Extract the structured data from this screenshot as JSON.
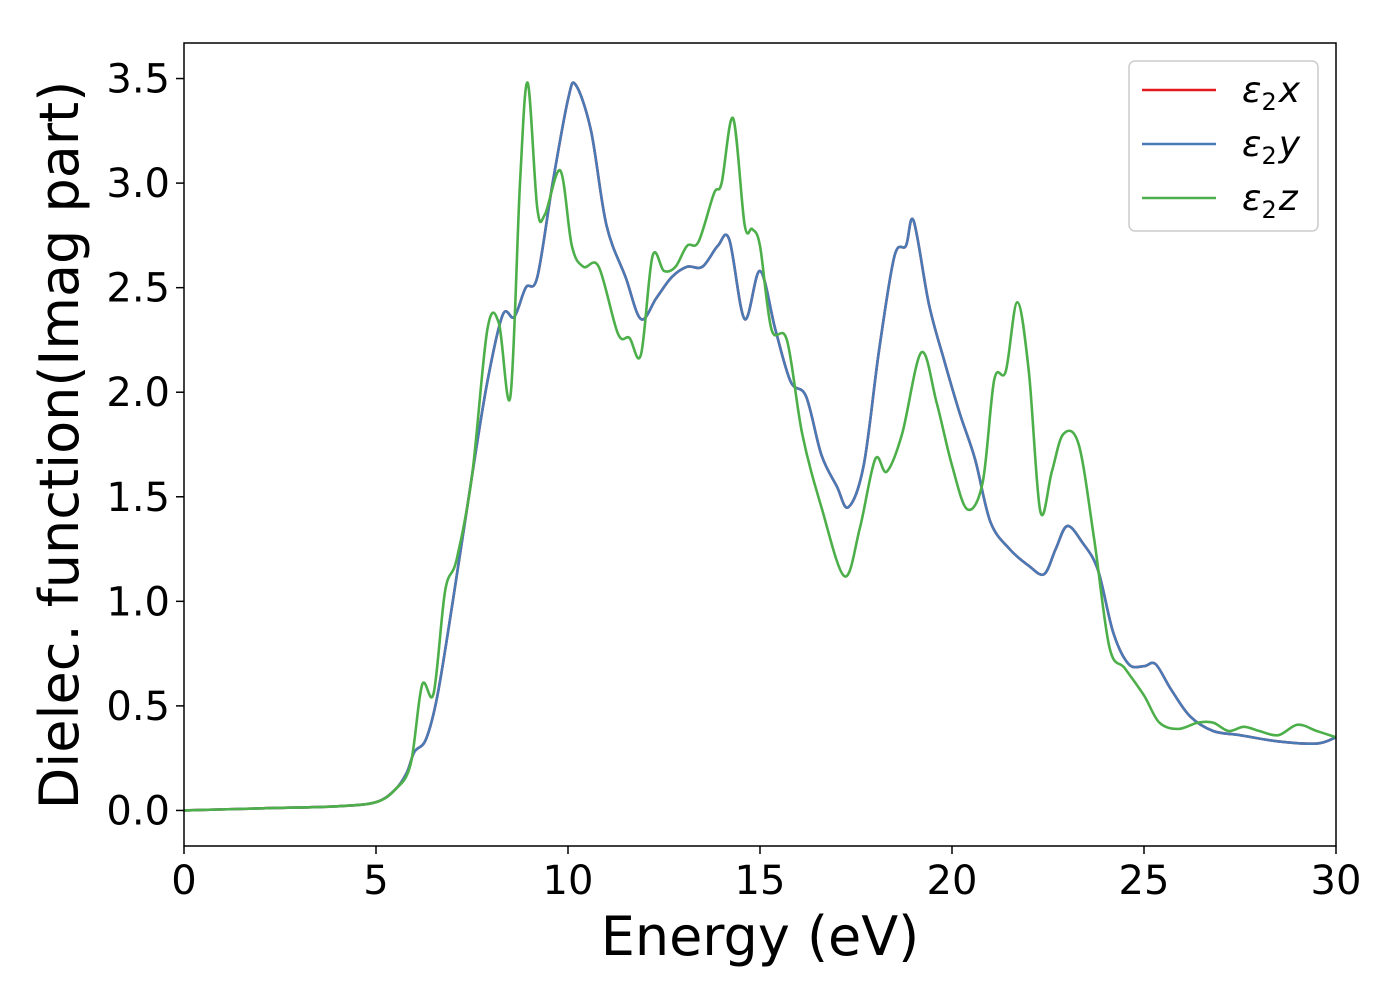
{
  "chart_data": {
    "type": "line",
    "xlabel": "Energy (eV)",
    "ylabel": "Dielec. function(Imag part)",
    "xlim": [
      0,
      30
    ],
    "ylim": [
      -0.17,
      3.67
    ],
    "xticks": [
      0,
      5,
      10,
      15,
      20,
      25,
      30
    ],
    "yticks": [
      0.0,
      0.5,
      1.0,
      1.5,
      2.0,
      2.5,
      3.0,
      3.5
    ],
    "xtick_labels": [
      "0",
      "5",
      "10",
      "15",
      "20",
      "25",
      "30"
    ],
    "ytick_labels": [
      "0.0",
      "0.5",
      "1.0",
      "1.5",
      "2.0",
      "2.5",
      "3.0",
      "3.5"
    ],
    "grid": false,
    "legend_position": "top-right",
    "series": [
      {
        "name": "ε2x",
        "legend": {
          "symbol": "ε",
          "sub": "2",
          "axis": "x"
        },
        "color": "#e41a1c",
        "x": [
          0,
          2,
          4,
          5,
          5.5,
          5.8,
          6.0,
          6.3,
          6.6,
          7.0,
          7.5,
          7.9,
          8.3,
          8.6,
          8.9,
          9.2,
          9.6,
          10.0,
          10.2,
          10.6,
          11.0,
          11.5,
          11.9,
          12.3,
          12.7,
          13.1,
          13.5,
          13.9,
          14.2,
          14.6,
          15.0,
          15.4,
          15.8,
          16.2,
          16.6,
          17.0,
          17.3,
          17.7,
          18.1,
          18.5,
          18.8,
          19.0,
          19.4,
          19.8,
          20.2,
          20.6,
          21.0,
          21.5,
          22.0,
          22.4,
          22.7,
          23.0,
          23.4,
          23.8,
          24.2,
          24.6,
          25.0,
          25.3,
          25.7,
          26.2,
          26.8,
          27.5,
          28.5,
          29.5,
          30.0
        ],
        "values": [
          0.0,
          0.01,
          0.02,
          0.04,
          0.1,
          0.18,
          0.28,
          0.34,
          0.55,
          1.0,
          1.6,
          2.05,
          2.37,
          2.36,
          2.5,
          2.55,
          3.0,
          3.4,
          3.47,
          3.25,
          2.8,
          2.55,
          2.35,
          2.45,
          2.55,
          2.6,
          2.6,
          2.7,
          2.73,
          2.35,
          2.58,
          2.3,
          2.05,
          1.98,
          1.7,
          1.55,
          1.45,
          1.65,
          2.2,
          2.65,
          2.7,
          2.82,
          2.42,
          2.15,
          1.9,
          1.68,
          1.38,
          1.25,
          1.17,
          1.13,
          1.25,
          1.36,
          1.28,
          1.15,
          0.85,
          0.7,
          0.69,
          0.7,
          0.58,
          0.45,
          0.38,
          0.36,
          0.33,
          0.32,
          0.35
        ]
      },
      {
        "name": "ε2y",
        "legend": {
          "symbol": "ε",
          "sub": "2",
          "axis": "y"
        },
        "color": "#4a7ab5",
        "x": [
          0,
          2,
          4,
          5,
          5.5,
          5.8,
          6.0,
          6.3,
          6.6,
          7.0,
          7.5,
          7.9,
          8.3,
          8.6,
          8.9,
          9.2,
          9.6,
          10.0,
          10.2,
          10.6,
          11.0,
          11.5,
          11.9,
          12.3,
          12.7,
          13.1,
          13.5,
          13.9,
          14.2,
          14.6,
          15.0,
          15.4,
          15.8,
          16.2,
          16.6,
          17.0,
          17.3,
          17.7,
          18.1,
          18.5,
          18.8,
          19.0,
          19.4,
          19.8,
          20.2,
          20.6,
          21.0,
          21.5,
          22.0,
          22.4,
          22.7,
          23.0,
          23.4,
          23.8,
          24.2,
          24.6,
          25.0,
          25.3,
          25.7,
          26.2,
          26.8,
          27.5,
          28.5,
          29.5,
          30.0
        ],
        "values": [
          0.0,
          0.01,
          0.02,
          0.04,
          0.1,
          0.18,
          0.28,
          0.34,
          0.55,
          1.0,
          1.6,
          2.05,
          2.37,
          2.36,
          2.5,
          2.55,
          3.0,
          3.4,
          3.47,
          3.25,
          2.8,
          2.55,
          2.35,
          2.45,
          2.55,
          2.6,
          2.6,
          2.7,
          2.73,
          2.35,
          2.58,
          2.3,
          2.05,
          1.98,
          1.7,
          1.55,
          1.45,
          1.65,
          2.2,
          2.65,
          2.7,
          2.82,
          2.42,
          2.15,
          1.9,
          1.68,
          1.38,
          1.25,
          1.17,
          1.13,
          1.25,
          1.36,
          1.28,
          1.15,
          0.85,
          0.7,
          0.69,
          0.7,
          0.58,
          0.45,
          0.38,
          0.36,
          0.33,
          0.32,
          0.35
        ]
      },
      {
        "name": "ε2z",
        "legend": {
          "symbol": "ε",
          "sub": "2",
          "axis": "z"
        },
        "color": "#4daf4a",
        "x": [
          0,
          2,
          4,
          5,
          5.5,
          5.9,
          6.2,
          6.5,
          6.8,
          7.1,
          7.5,
          7.9,
          8.2,
          8.5,
          8.75,
          8.95,
          9.2,
          9.4,
          9.8,
          10.1,
          10.4,
          10.8,
          11.3,
          11.6,
          11.9,
          12.2,
          12.5,
          12.8,
          13.1,
          13.4,
          13.8,
          14.0,
          14.3,
          14.6,
          14.8,
          15.0,
          15.3,
          15.7,
          16.1,
          16.6,
          17.2,
          17.6,
          18.0,
          18.3,
          18.7,
          19.2,
          19.6,
          20.0,
          20.4,
          20.8,
          21.1,
          21.4,
          21.7,
          22.0,
          22.3,
          22.6,
          22.9,
          23.3,
          23.7,
          24.1,
          24.5,
          25.0,
          25.4,
          25.9,
          26.4,
          26.8,
          27.2,
          27.6,
          28.0,
          28.5,
          29.0,
          29.5,
          30.0
        ],
        "values": [
          0.0,
          0.01,
          0.02,
          0.04,
          0.1,
          0.22,
          0.6,
          0.56,
          1.05,
          1.2,
          1.6,
          2.3,
          2.33,
          1.98,
          3.0,
          3.48,
          2.88,
          2.85,
          3.06,
          2.7,
          2.6,
          2.6,
          2.28,
          2.26,
          2.18,
          2.65,
          2.58,
          2.6,
          2.7,
          2.72,
          2.95,
          3.0,
          3.31,
          2.8,
          2.78,
          2.7,
          2.3,
          2.25,
          1.8,
          1.45,
          1.12,
          1.35,
          1.68,
          1.62,
          1.8,
          2.19,
          1.95,
          1.65,
          1.44,
          1.57,
          2.06,
          2.1,
          2.43,
          2.1,
          1.43,
          1.62,
          1.8,
          1.75,
          1.3,
          0.78,
          0.68,
          0.55,
          0.42,
          0.39,
          0.42,
          0.42,
          0.38,
          0.4,
          0.38,
          0.36,
          0.41,
          0.38,
          0.35
        ]
      }
    ]
  }
}
